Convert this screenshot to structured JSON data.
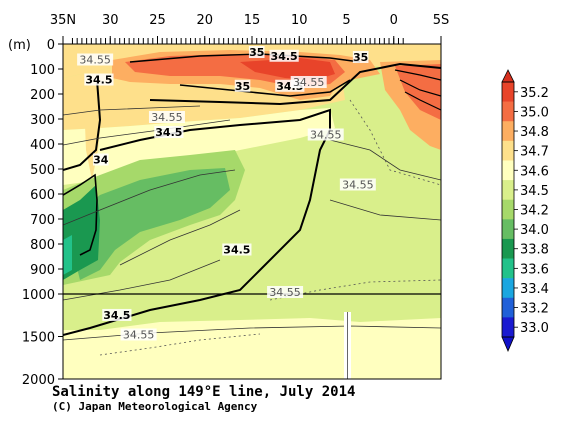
{
  "chart_data": {
    "type": "heatmap",
    "title": "Salinity along 149°E line, July 2014",
    "credit": "(C) Japan Meteorological Agency",
    "x_tick_labels": [
      "35N",
      "30",
      "25",
      "20",
      "15",
      "10",
      "5",
      "0",
      "5S"
    ],
    "x_values": [
      35,
      30,
      25,
      20,
      15,
      10,
      5,
      0,
      -5
    ],
    "xlim": [
      35,
      -5
    ],
    "y_unit_label": "(m)",
    "y_tick_labels": [
      "0",
      "100",
      "200",
      "300",
      "400",
      "500",
      "600",
      "700",
      "800",
      "900",
      "1000",
      "1500",
      "2000"
    ],
    "y_values": [
      0,
      100,
      200,
      300,
      400,
      500,
      600,
      700,
      800,
      900,
      1000,
      1500,
      2000
    ],
    "ylim": [
      0,
      2000
    ],
    "y_scale_break": 1000,
    "colorbar": {
      "labels": [
        "35.2",
        "35.0",
        "34.8",
        "34.7",
        "34.6",
        "34.5",
        "34.2",
        "34.0",
        "33.8",
        "33.6",
        "33.4",
        "33.2",
        "33.0"
      ],
      "colors": [
        "#e8442a",
        "#f46d43",
        "#fdae61",
        "#fee08b",
        "#ffffbf",
        "#d9ef8b",
        "#a6d96a",
        "#66bd63",
        "#1a9850",
        "#22c28a",
        "#1aa6e0",
        "#2060d8",
        "#1a1ad0"
      ]
    },
    "contour_labels": [
      {
        "text": "34.5",
        "lat": 31.2,
        "depth": 150,
        "bold": true
      },
      {
        "text": "34.55",
        "lat": 31.6,
        "depth": 70,
        "bold": false
      },
      {
        "text": "34",
        "lat": 31.0,
        "depth": 470,
        "bold": true
      },
      {
        "text": "34.55",
        "lat": 24.0,
        "depth": 300,
        "bold": false
      },
      {
        "text": "34.5",
        "lat": 23.8,
        "depth": 360,
        "bold": true
      },
      {
        "text": "35",
        "lat": 14.5,
        "depth": 40,
        "bold": true
      },
      {
        "text": "34.5",
        "lat": 11.6,
        "depth": 55,
        "bold": true
      },
      {
        "text": "35",
        "lat": 3.5,
        "depth": 60,
        "bold": true
      },
      {
        "text": "35",
        "lat": 16.0,
        "depth": 175,
        "bold": true
      },
      {
        "text": "34.5",
        "lat": 11.0,
        "depth": 175,
        "bold": true
      },
      {
        "text": "34.55",
        "lat": 9.0,
        "depth": 160,
        "bold": false
      },
      {
        "text": "34.55",
        "lat": 7.2,
        "depth": 370,
        "bold": false
      },
      {
        "text": "34.55",
        "lat": 3.8,
        "depth": 570,
        "bold": false
      },
      {
        "text": "34.5",
        "lat": 16.6,
        "depth": 830,
        "bold": true
      },
      {
        "text": "34.55",
        "lat": 11.5,
        "depth": 1000,
        "bold": false
      },
      {
        "text": "34.5",
        "lat": 29.3,
        "depth": 1270,
        "bold": true
      },
      {
        "text": "34.55",
        "lat": 27.0,
        "depth": 1500,
        "bold": false
      }
    ]
  }
}
